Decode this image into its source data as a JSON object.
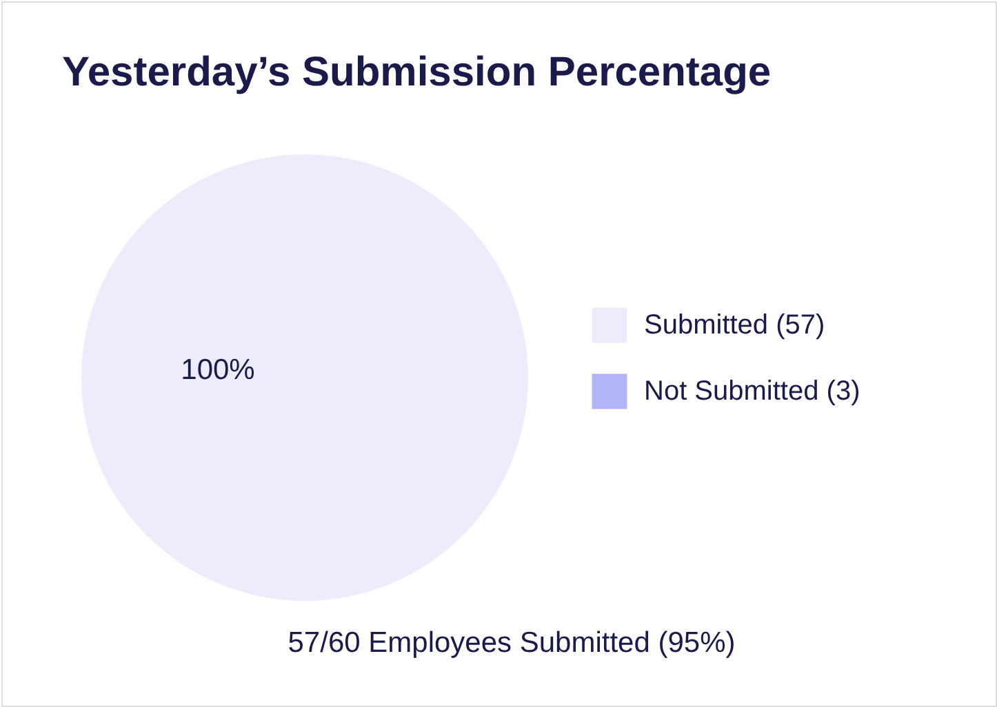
{
  "chart_data": {
    "type": "pie",
    "title": "Yesterday’s Submission Percentage",
    "categories": [
      "Submitted (57)",
      "Not Submitted (3)"
    ],
    "values": [
      100,
      0
    ],
    "colors": [
      "#ececfb",
      "#b4b4f8"
    ],
    "value_labels": [
      "100%",
      null
    ],
    "legend": "right",
    "annotations": [
      "57/60 Employees Submitted (95%)"
    ]
  }
}
